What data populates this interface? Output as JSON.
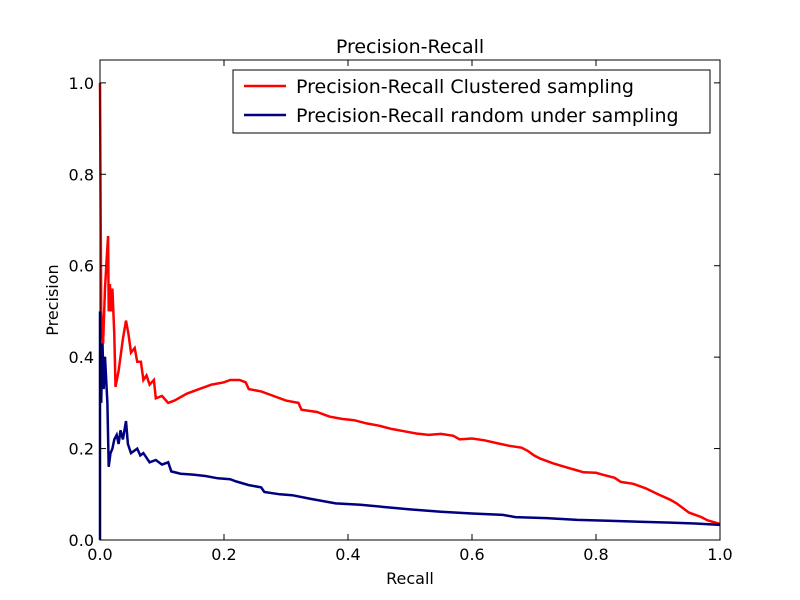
{
  "chart_data": {
    "type": "line",
    "title": "Precision-Recall",
    "xlabel": "Recall",
    "ylabel": "Precision",
    "xlim": [
      0.0,
      1.0
    ],
    "ylim": [
      0.0,
      1.05
    ],
    "xticks": [
      "0.0",
      "0.2",
      "0.4",
      "0.6",
      "0.8",
      "1.0"
    ],
    "yticks": [
      "0.0",
      "0.2",
      "0.4",
      "0.6",
      "0.8",
      "1.0"
    ],
    "grid": false,
    "legend_position": "top-right",
    "series": [
      {
        "name": "Precision-Recall Clustered sampling",
        "color": "#ff0000",
        "points": [
          [
            0.0,
            1.0
          ],
          [
            0.002,
            0.5
          ],
          [
            0.005,
            0.43
          ],
          [
            0.008,
            0.55
          ],
          [
            0.011,
            0.62
          ],
          [
            0.013,
            0.665
          ],
          [
            0.014,
            0.5
          ],
          [
            0.016,
            0.56
          ],
          [
            0.018,
            0.5
          ],
          [
            0.02,
            0.55
          ],
          [
            0.023,
            0.45
          ],
          [
            0.025,
            0.335
          ],
          [
            0.03,
            0.37
          ],
          [
            0.037,
            0.44
          ],
          [
            0.042,
            0.48
          ],
          [
            0.046,
            0.45
          ],
          [
            0.05,
            0.41
          ],
          [
            0.056,
            0.42
          ],
          [
            0.06,
            0.39
          ],
          [
            0.066,
            0.39
          ],
          [
            0.07,
            0.35
          ],
          [
            0.075,
            0.36
          ],
          [
            0.08,
            0.34
          ],
          [
            0.087,
            0.35
          ],
          [
            0.09,
            0.31
          ],
          [
            0.1,
            0.315
          ],
          [
            0.11,
            0.3
          ],
          [
            0.12,
            0.305
          ],
          [
            0.14,
            0.32
          ],
          [
            0.16,
            0.33
          ],
          [
            0.18,
            0.34
          ],
          [
            0.2,
            0.345
          ],
          [
            0.21,
            0.35
          ],
          [
            0.225,
            0.35
          ],
          [
            0.235,
            0.345
          ],
          [
            0.24,
            0.33
          ],
          [
            0.26,
            0.325
          ],
          [
            0.28,
            0.315
          ],
          [
            0.3,
            0.305
          ],
          [
            0.32,
            0.3
          ],
          [
            0.325,
            0.285
          ],
          [
            0.35,
            0.28
          ],
          [
            0.37,
            0.27
          ],
          [
            0.39,
            0.265
          ],
          [
            0.41,
            0.262
          ],
          [
            0.43,
            0.255
          ],
          [
            0.45,
            0.25
          ],
          [
            0.47,
            0.243
          ],
          [
            0.49,
            0.238
          ],
          [
            0.51,
            0.233
          ],
          [
            0.53,
            0.23
          ],
          [
            0.55,
            0.232
          ],
          [
            0.57,
            0.228
          ],
          [
            0.58,
            0.22
          ],
          [
            0.6,
            0.222
          ],
          [
            0.62,
            0.218
          ],
          [
            0.64,
            0.212
          ],
          [
            0.66,
            0.206
          ],
          [
            0.68,
            0.202
          ],
          [
            0.69,
            0.195
          ],
          [
            0.7,
            0.185
          ],
          [
            0.71,
            0.178
          ],
          [
            0.73,
            0.168
          ],
          [
            0.75,
            0.16
          ],
          [
            0.77,
            0.152
          ],
          [
            0.78,
            0.148
          ],
          [
            0.8,
            0.147
          ],
          [
            0.81,
            0.143
          ],
          [
            0.83,
            0.136
          ],
          [
            0.84,
            0.127
          ],
          [
            0.86,
            0.123
          ],
          [
            0.88,
            0.113
          ],
          [
            0.9,
            0.1
          ],
          [
            0.92,
            0.088
          ],
          [
            0.93,
            0.08
          ],
          [
            0.95,
            0.06
          ],
          [
            0.97,
            0.05
          ],
          [
            0.98,
            0.043
          ],
          [
            1.0,
            0.035
          ]
        ]
      },
      {
        "name": "Precision-Recall random under sampling",
        "color": "#000080",
        "points": [
          [
            0.0,
            0.0
          ],
          [
            0.0,
            0.5
          ],
          [
            0.002,
            0.3
          ],
          [
            0.004,
            0.43
          ],
          [
            0.006,
            0.33
          ],
          [
            0.008,
            0.4
          ],
          [
            0.01,
            0.35
          ],
          [
            0.012,
            0.3
          ],
          [
            0.014,
            0.16
          ],
          [
            0.017,
            0.19
          ],
          [
            0.02,
            0.2
          ],
          [
            0.023,
            0.22
          ],
          [
            0.027,
            0.23
          ],
          [
            0.03,
            0.21
          ],
          [
            0.033,
            0.24
          ],
          [
            0.037,
            0.22
          ],
          [
            0.042,
            0.26
          ],
          [
            0.045,
            0.21
          ],
          [
            0.05,
            0.19
          ],
          [
            0.06,
            0.2
          ],
          [
            0.065,
            0.185
          ],
          [
            0.07,
            0.19
          ],
          [
            0.08,
            0.17
          ],
          [
            0.09,
            0.175
          ],
          [
            0.1,
            0.165
          ],
          [
            0.11,
            0.17
          ],
          [
            0.115,
            0.15
          ],
          [
            0.13,
            0.145
          ],
          [
            0.15,
            0.143
          ],
          [
            0.17,
            0.14
          ],
          [
            0.19,
            0.135
          ],
          [
            0.21,
            0.133
          ],
          [
            0.22,
            0.128
          ],
          [
            0.24,
            0.12
          ],
          [
            0.26,
            0.115
          ],
          [
            0.265,
            0.105
          ],
          [
            0.29,
            0.1
          ],
          [
            0.31,
            0.098
          ],
          [
            0.34,
            0.09
          ],
          [
            0.36,
            0.085
          ],
          [
            0.38,
            0.08
          ],
          [
            0.42,
            0.077
          ],
          [
            0.46,
            0.072
          ],
          [
            0.5,
            0.067
          ],
          [
            0.55,
            0.062
          ],
          [
            0.6,
            0.058
          ],
          [
            0.65,
            0.055
          ],
          [
            0.67,
            0.05
          ],
          [
            0.72,
            0.048
          ],
          [
            0.77,
            0.044
          ],
          [
            0.82,
            0.042
          ],
          [
            0.87,
            0.04
          ],
          [
            0.92,
            0.038
          ],
          [
            0.96,
            0.036
          ],
          [
            1.0,
            0.033
          ]
        ]
      }
    ]
  }
}
